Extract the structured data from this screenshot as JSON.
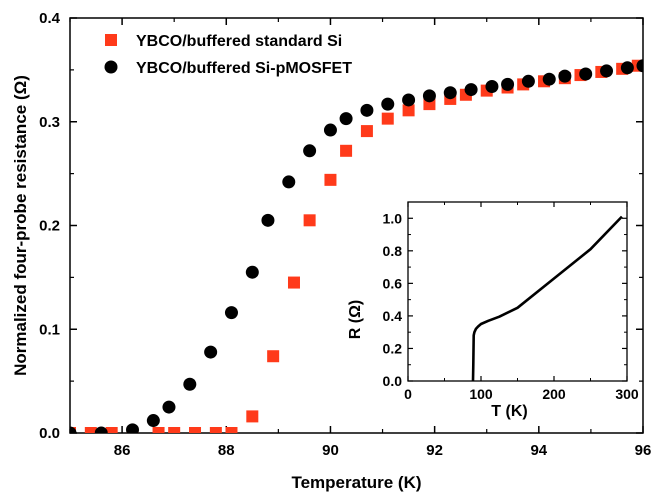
{
  "chart_data": [
    {
      "type": "scatter",
      "title": "",
      "xlabel": "Temperature (K)",
      "ylabel": "Normalized four-probe resistance (Ω)",
      "xlim": [
        85,
        96
      ],
      "ylim": [
        0,
        0.4
      ],
      "x_ticks": [
        "86",
        "88",
        "90",
        "92",
        "94",
        "96"
      ],
      "y_ticks": [
        "0.0",
        "0.1",
        "0.2",
        "0.3",
        "0.4"
      ],
      "legend_position": "top-left",
      "series": [
        {
          "name": "YBCO/buffered standard Si",
          "marker": "square",
          "color": "#ff3a1a",
          "points": [
            [
              85.0,
              0.0
            ],
            [
              85.4,
              0.0
            ],
            [
              85.8,
              0.0
            ],
            [
              86.2,
              0.0
            ],
            [
              86.7,
              0.0
            ],
            [
              87.0,
              0.0
            ],
            [
              87.4,
              0.0
            ],
            [
              87.8,
              0.0
            ],
            [
              88.1,
              0.0
            ],
            [
              88.5,
              0.016
            ],
            [
              88.9,
              0.074
            ],
            [
              89.3,
              0.145
            ],
            [
              89.6,
              0.205
            ],
            [
              90.0,
              0.244
            ],
            [
              90.3,
              0.272
            ],
            [
              90.7,
              0.291
            ],
            [
              91.1,
              0.303
            ],
            [
              91.5,
              0.311
            ],
            [
              91.9,
              0.317
            ],
            [
              92.3,
              0.322
            ],
            [
              92.6,
              0.326
            ],
            [
              93.0,
              0.33
            ],
            [
              93.4,
              0.333
            ],
            [
              93.7,
              0.336
            ],
            [
              94.1,
              0.339
            ],
            [
              94.5,
              0.342
            ],
            [
              94.8,
              0.345
            ],
            [
              95.2,
              0.348
            ],
            [
              95.6,
              0.351
            ],
            [
              95.9,
              0.354
            ]
          ]
        },
        {
          "name": "YBCO/buffered Si-pMOSFET",
          "marker": "circle",
          "color": "#000000",
          "points": [
            [
              85.0,
              0.0
            ],
            [
              85.6,
              0.0
            ],
            [
              86.2,
              0.003
            ],
            [
              86.6,
              0.012
            ],
            [
              86.9,
              0.025
            ],
            [
              87.3,
              0.047
            ],
            [
              87.7,
              0.078
            ],
            [
              88.1,
              0.116
            ],
            [
              88.5,
              0.155
            ],
            [
              88.8,
              0.205
            ],
            [
              89.2,
              0.242
            ],
            [
              89.6,
              0.272
            ],
            [
              90.0,
              0.292
            ],
            [
              90.3,
              0.303
            ],
            [
              90.7,
              0.311
            ],
            [
              91.1,
              0.317
            ],
            [
              91.5,
              0.321
            ],
            [
              91.9,
              0.325
            ],
            [
              92.3,
              0.328
            ],
            [
              92.7,
              0.331
            ],
            [
              93.1,
              0.334
            ],
            [
              93.4,
              0.336
            ],
            [
              93.8,
              0.339
            ],
            [
              94.2,
              0.341
            ],
            [
              94.5,
              0.344
            ],
            [
              94.9,
              0.346
            ],
            [
              95.3,
              0.349
            ],
            [
              95.7,
              0.352
            ],
            [
              96.0,
              0.354
            ]
          ]
        }
      ]
    },
    {
      "type": "line",
      "title": "",
      "xlabel": "T (K)",
      "ylabel": "R (Ω)",
      "xlim": [
        0,
        300
      ],
      "ylim": [
        0,
        1.1
      ],
      "x_ticks": [
        "0",
        "100",
        "200",
        "300"
      ],
      "y_ticks": [
        "0.0",
        "0.2",
        "0.4",
        "0.6",
        "0.8",
        "1.0"
      ],
      "series": [
        {
          "name": "",
          "color": "#000000",
          "points": [
            [
              89,
              0.0
            ],
            [
              89.5,
              0.1
            ],
            [
              90,
              0.28
            ],
            [
              91,
              0.3
            ],
            [
              93,
              0.32
            ],
            [
              96,
              0.335
            ],
            [
              100,
              0.35
            ],
            [
              110,
              0.37
            ],
            [
              125,
              0.395
            ],
            [
              150,
              0.45
            ],
            [
              200,
              0.63
            ],
            [
              250,
              0.81
            ],
            [
              293,
              1.01
            ]
          ]
        }
      ]
    }
  ]
}
